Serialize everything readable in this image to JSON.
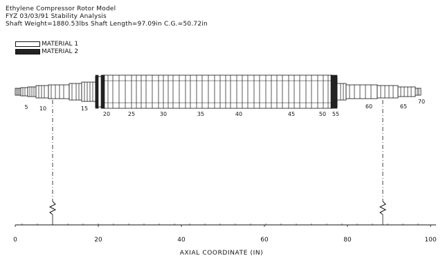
{
  "header": {
    "title": "Ethylene Compressor Rotor Model",
    "subtitle": "FYZ 03/03/91   Stability Analysis",
    "specs": "Shaft Weight=1880.53lbs   Shaft Length=97.09in     C.G.=50.72in"
  },
  "legend": [
    {
      "label": "MATERIAL  1",
      "color": "#ffffff"
    },
    {
      "label": "MATERIAL  2",
      "color": "#222222"
    }
  ],
  "station_labels": [
    "5",
    "10",
    "15",
    "20",
    "25",
    "30",
    "35",
    "40",
    "45",
    "50",
    "55",
    "60",
    "65",
    "70"
  ],
  "x_axis": {
    "title": "AXIAL  COORDINATE  (IN)",
    "min": 0,
    "max": 100,
    "ticks": [
      0,
      20,
      40,
      60,
      80,
      100
    ]
  },
  "bearing_positions": [
    9,
    88.5
  ],
  "colors": {
    "line": "#111111",
    "material2": "#222222"
  }
}
